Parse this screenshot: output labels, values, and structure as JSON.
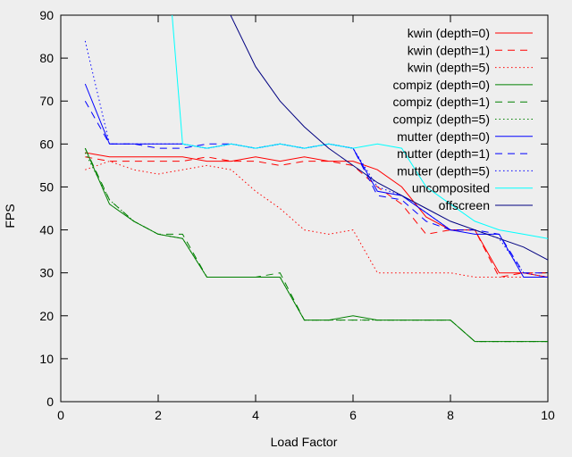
{
  "chart_data": {
    "type": "line",
    "xlabel": "Load Factor",
    "ylabel": "FPS",
    "xlim": [
      0,
      10
    ],
    "ylim": [
      0,
      90
    ],
    "x_ticks": [
      0,
      2,
      4,
      6,
      8,
      10
    ],
    "y_ticks": [
      0,
      10,
      20,
      30,
      40,
      50,
      60,
      70,
      80,
      90
    ],
    "grid": false,
    "legend_position": "top-right",
    "x": [
      0.5,
      1,
      1.5,
      2,
      2.5,
      3,
      3.5,
      4,
      4.5,
      5,
      5.5,
      6,
      6.5,
      7,
      7.5,
      8,
      8.5,
      9,
      9.5,
      10
    ],
    "series": [
      {
        "name": "kwin (depth=0)",
        "color": "#ff0000",
        "dash": "solid",
        "values": [
          58,
          57,
          57,
          57,
          57,
          56,
          56,
          57,
          56,
          57,
          56,
          56,
          54,
          50,
          43,
          40,
          40,
          30,
          30,
          29
        ]
      },
      {
        "name": "kwin (depth=1)",
        "color": "#ff0000",
        "dash": "dashed",
        "values": [
          57,
          56,
          56,
          56,
          56,
          57,
          56,
          56,
          55,
          56,
          56,
          55,
          50,
          46,
          39,
          40,
          40,
          29,
          30,
          30
        ]
      },
      {
        "name": "kwin (depth=5)",
        "color": "#ff0000",
        "dash": "dotted",
        "values": [
          54,
          56,
          54,
          53,
          54,
          55,
          54,
          49,
          45,
          40,
          39,
          40,
          30,
          30,
          30,
          30,
          29,
          29,
          29,
          29
        ]
      },
      {
        "name": "compiz (depth=0)",
        "color": "#008000",
        "dash": "solid",
        "values": [
          59,
          46,
          42,
          39,
          38,
          29,
          29,
          29,
          29,
          19,
          19,
          20,
          19,
          19,
          19,
          19,
          14,
          14,
          14,
          14
        ]
      },
      {
        "name": "compiz (depth=1)",
        "color": "#008000",
        "dash": "dashed",
        "values": [
          59,
          47,
          42,
          39,
          39,
          29,
          29,
          29,
          30,
          19,
          19,
          19,
          19,
          19,
          19,
          19,
          14,
          14,
          14,
          14
        ]
      },
      {
        "name": "compiz (depth=5)",
        "color": "#008000",
        "dash": "dotted",
        "values": [
          58,
          47,
          42,
          39,
          38,
          29,
          29,
          29,
          29,
          19,
          19,
          19,
          19,
          19,
          19,
          19,
          14,
          14,
          14,
          14
        ]
      },
      {
        "name": "mutter (depth=0)",
        "color": "#0000ff",
        "dash": "solid",
        "values": [
          74,
          60,
          60,
          60,
          60,
          59,
          60,
          59,
          60,
          59,
          60,
          59,
          49,
          48,
          44,
          40,
          39,
          39,
          29,
          29
        ]
      },
      {
        "name": "mutter (depth=1)",
        "color": "#0000ff",
        "dash": "dashed",
        "values": [
          70,
          60,
          60,
          59,
          59,
          60,
          60,
          59,
          60,
          59,
          60,
          59,
          48,
          47,
          42,
          40,
          40,
          39,
          30,
          30
        ]
      },
      {
        "name": "mutter (depth=5)",
        "color": "#0000ff",
        "dash": "dotted",
        "values": [
          84,
          60,
          60,
          60,
          60,
          59,
          60,
          59,
          60,
          59,
          60,
          59,
          50,
          48,
          44,
          40,
          40,
          38,
          30,
          29
        ]
      },
      {
        "name": "uncomposited",
        "color": "#00ffff",
        "dash": "solid",
        "values": [
          null,
          null,
          null,
          null,
          60,
          59,
          60,
          59,
          60,
          59,
          60,
          59,
          60,
          59,
          50,
          46,
          42,
          40,
          39,
          38
        ],
        "notes_offscale": "values above 90 at x=2.25"
      },
      {
        "name": "offscreen",
        "color": "#000080",
        "dash": "solid",
        "values": [
          null,
          null,
          null,
          null,
          null,
          null,
          null,
          78,
          70,
          64,
          59,
          55,
          51,
          48,
          45,
          42,
          40,
          38,
          36,
          33
        ]
      }
    ]
  }
}
